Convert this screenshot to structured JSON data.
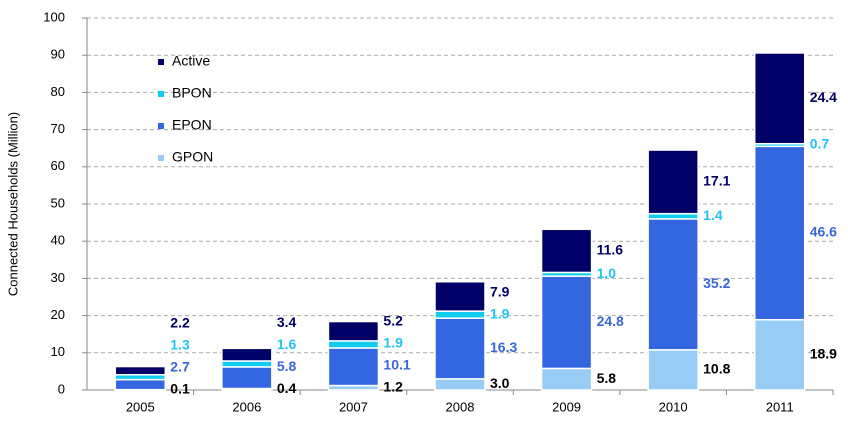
{
  "chart_data": {
    "type": "stacked_bar",
    "ylabel": "Connected Households (Million)",
    "categories": [
      "2005",
      "2006",
      "2007",
      "2008",
      "2009",
      "2010",
      "2011"
    ],
    "series": [
      {
        "name": "GPON",
        "color": "#99ccf5",
        "label_color": "#000000",
        "values": [
          0.1,
          0.4,
          1.2,
          3.0,
          5.8,
          10.8,
          18.9
        ],
        "value_labels": [
          "0.1",
          "0.4",
          "1.2",
          "3.0",
          "5.8",
          "10.8",
          "18.9"
        ]
      },
      {
        "name": "EPON",
        "color": "#3366e0",
        "label_color": "#3a66d8",
        "values": [
          2.7,
          5.8,
          10.1,
          16.3,
          24.8,
          35.2,
          46.6
        ],
        "value_labels": [
          "2.7",
          "5.8",
          "10.1",
          "16.3",
          "24.8",
          "35.2",
          "46.6"
        ]
      },
      {
        "name": "BPON",
        "color": "#11ccee",
        "label_color": "#22c4ee",
        "values": [
          1.3,
          1.6,
          1.9,
          1.9,
          1.0,
          1.4,
          0.7
        ],
        "value_labels": [
          "1.3",
          "1.6",
          "1.9",
          "1.9",
          "1.0",
          "1.4",
          "0.7"
        ]
      },
      {
        "name": "Active",
        "color": "#000066",
        "label_color": "#000066",
        "values": [
          2.2,
          3.4,
          5.2,
          7.9,
          11.6,
          17.1,
          24.4
        ],
        "value_labels": [
          "2.2",
          "3.4",
          "5.2",
          "7.9",
          "11.6",
          "17.1",
          "24.4"
        ]
      }
    ],
    "legend_order": [
      "Active",
      "BPON",
      "EPON",
      "GPON"
    ],
    "ylim": [
      0,
      100
    ],
    "yticks": [
      0,
      10,
      20,
      30,
      40,
      50,
      60,
      70,
      80,
      90,
      100
    ],
    "grid": true
  }
}
